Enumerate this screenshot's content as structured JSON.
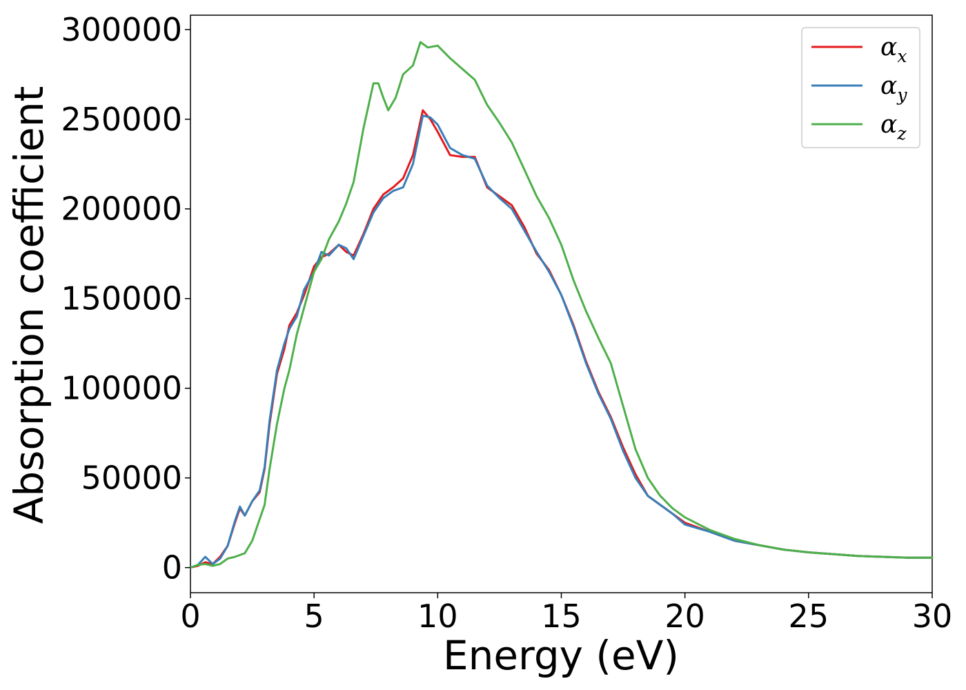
{
  "chart_data": {
    "type": "line",
    "title": "",
    "xlabel": "Energy (eV)",
    "ylabel": "Absorption coefficient",
    "xlim": [
      0,
      30
    ],
    "ylim": [
      -14000,
      308000
    ],
    "xticks": [
      0,
      5,
      10,
      15,
      20,
      25,
      30
    ],
    "xtick_labels": [
      "0",
      "5",
      "10",
      "15",
      "20",
      "25",
      "30"
    ],
    "yticks": [
      0,
      50000,
      100000,
      150000,
      200000,
      250000,
      300000
    ],
    "ytick_labels": [
      "0",
      "50000",
      "100000",
      "150000",
      "200000",
      "250000",
      "300000"
    ],
    "grid": false,
    "legend_position": "top-right",
    "series": [
      {
        "name": "α_x",
        "label_main": "α",
        "label_sub": "x",
        "color": "#e41a1c",
        "x": [
          0,
          0.3,
          0.6,
          0.9,
          1.2,
          1.5,
          1.8,
          2.0,
          2.2,
          2.5,
          2.8,
          3.0,
          3.2,
          3.5,
          3.8,
          4.0,
          4.3,
          4.6,
          5.0,
          5.3,
          5.6,
          6.0,
          6.3,
          6.6,
          7.0,
          7.4,
          7.8,
          8.2,
          8.6,
          9.0,
          9.4,
          9.7,
          10.0,
          10.5,
          11.0,
          11.5,
          12.0,
          12.5,
          13.0,
          13.5,
          14.0,
          14.5,
          15.0,
          15.5,
          16.0,
          16.5,
          17.0,
          17.5,
          18.0,
          18.5,
          19.0,
          19.5,
          20.0,
          21.0,
          22.0,
          23.0,
          24.0,
          25.0,
          26.0,
          27.0,
          28.0,
          29.0,
          30.0
        ],
        "values": [
          0,
          1000,
          3000,
          2000,
          6000,
          12000,
          25000,
          33000,
          29000,
          37000,
          42000,
          55000,
          80000,
          108000,
          122000,
          135000,
          142000,
          152000,
          168000,
          173000,
          175000,
          180000,
          176000,
          174000,
          186000,
          200000,
          208000,
          212000,
          217000,
          230000,
          255000,
          250000,
          243000,
          230000,
          229000,
          229000,
          212000,
          207000,
          202000,
          190000,
          175000,
          166000,
          152000,
          135000,
          115000,
          98000,
          84000,
          67000,
          52000,
          40000,
          35000,
          30000,
          25000,
          20000,
          15000,
          12500,
          10000,
          8500,
          7500,
          6500,
          6000,
          5500,
          5500
        ]
      },
      {
        "name": "α_y",
        "label_main": "α",
        "label_sub": "y",
        "color": "#377eb8",
        "x": [
          0,
          0.3,
          0.6,
          0.9,
          1.2,
          1.5,
          1.8,
          2.0,
          2.2,
          2.5,
          2.8,
          3.0,
          3.2,
          3.5,
          3.8,
          4.0,
          4.3,
          4.6,
          5.0,
          5.3,
          5.6,
          6.0,
          6.3,
          6.6,
          7.0,
          7.4,
          7.8,
          8.2,
          8.6,
          9.0,
          9.4,
          9.7,
          10.0,
          10.5,
          11.0,
          11.5,
          12.0,
          12.5,
          13.0,
          13.5,
          14.0,
          14.5,
          15.0,
          15.5,
          16.0,
          16.5,
          17.0,
          17.5,
          18.0,
          18.5,
          19.0,
          19.5,
          20.0,
          21.0,
          22.0,
          23.0,
          24.0,
          25.0,
          26.0,
          27.0,
          28.0,
          29.0,
          30.0
        ],
        "values": [
          0,
          1500,
          6000,
          2000,
          5000,
          12000,
          26000,
          34000,
          29000,
          37000,
          43000,
          56000,
          82000,
          110000,
          125000,
          133000,
          140000,
          155000,
          165000,
          176000,
          174000,
          180000,
          178000,
          172000,
          185000,
          198000,
          206000,
          210000,
          212000,
          225000,
          252000,
          251000,
          247000,
          234000,
          230000,
          228000,
          213000,
          206000,
          200000,
          188000,
          176000,
          165000,
          152000,
          134000,
          114000,
          97000,
          83000,
          65000,
          50000,
          40000,
          35000,
          30000,
          24000,
          20000,
          15000,
          12500,
          10000,
          8500,
          7500,
          6500,
          6000,
          5500,
          5500
        ]
      },
      {
        "name": "α_z",
        "label_main": "α",
        "label_sub": "z",
        "color": "#4daf4a",
        "x": [
          0,
          0.3,
          0.6,
          0.9,
          1.2,
          1.5,
          1.8,
          2.0,
          2.2,
          2.5,
          2.8,
          3.0,
          3.2,
          3.5,
          3.8,
          4.0,
          4.3,
          4.6,
          5.0,
          5.3,
          5.6,
          6.0,
          6.3,
          6.6,
          7.0,
          7.4,
          7.6,
          7.8,
          8.0,
          8.3,
          8.6,
          9.0,
          9.3,
          9.6,
          10.0,
          10.5,
          11.0,
          11.5,
          12.0,
          12.5,
          13.0,
          13.5,
          14.0,
          14.5,
          15.0,
          15.5,
          16.0,
          16.5,
          17.0,
          17.5,
          18.0,
          18.5,
          19.0,
          19.5,
          20.0,
          21.0,
          22.0,
          23.0,
          24.0,
          25.0,
          26.0,
          27.0,
          28.0,
          29.0,
          30.0
        ],
        "values": [
          0,
          1500,
          2000,
          1000,
          2000,
          5000,
          6000,
          7000,
          8000,
          15000,
          27000,
          35000,
          55000,
          80000,
          100000,
          110000,
          130000,
          145000,
          165000,
          172000,
          183000,
          193000,
          203000,
          215000,
          245000,
          270000,
          270000,
          262000,
          255000,
          262000,
          275000,
          280000,
          293000,
          290000,
          291000,
          284000,
          278000,
          272000,
          258000,
          248000,
          237000,
          222000,
          207000,
          195000,
          180000,
          160000,
          143000,
          128000,
          114000,
          90000,
          66000,
          50000,
          40000,
          33000,
          28000,
          21000,
          16000,
          12500,
          10000,
          8500,
          7500,
          6500,
          6000,
          5500,
          5500
        ]
      }
    ]
  }
}
